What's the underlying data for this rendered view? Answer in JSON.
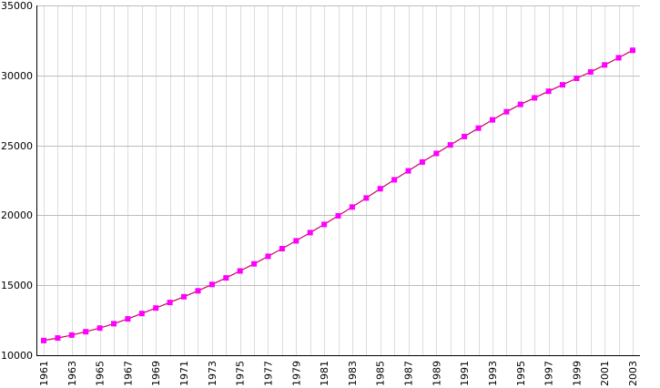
{
  "chart_data": {
    "type": "line",
    "title": "",
    "xlabel": "",
    "ylabel": "",
    "x": [
      1961,
      1962,
      1963,
      1964,
      1965,
      1966,
      1967,
      1968,
      1969,
      1970,
      1971,
      1972,
      1973,
      1974,
      1975,
      1976,
      1977,
      1978,
      1979,
      1980,
      1981,
      1982,
      1983,
      1984,
      1985,
      1986,
      1987,
      1988,
      1989,
      1990,
      1991,
      1992,
      1993,
      1994,
      1995,
      1996,
      1997,
      1998,
      1999,
      2000,
      2001,
      2002,
      2003
    ],
    "xlim": [
      1961,
      2003
    ],
    "x_tick_labels": [
      "1961",
      "1963",
      "1965",
      "1967",
      "1969",
      "1971",
      "1973",
      "1975",
      "1977",
      "1979",
      "1981",
      "1983",
      "1985",
      "1987",
      "1989",
      "1991",
      "1993",
      "1995",
      "1997",
      "1999",
      "2001",
      "2003"
    ],
    "ylim": [
      10000,
      35000
    ],
    "y_ticks": [
      10000,
      15000,
      20000,
      25000,
      30000,
      35000
    ],
    "y_tick_labels": [
      "10000",
      "15000",
      "20000",
      "25000",
      "30000",
      "35000"
    ],
    "grid": true,
    "legend": "none",
    "series": [
      {
        "color": "#ff00ff",
        "line_color": "#cc0066",
        "marker": "square",
        "values": [
          11050,
          11230,
          11440,
          11680,
          11940,
          12250,
          12600,
          12980,
          13370,
          13770,
          14180,
          14600,
          15060,
          15530,
          16020,
          16530,
          17070,
          17620,
          18180,
          18760,
          19350,
          19970,
          20590,
          21240,
          21900,
          22540,
          23180,
          23810,
          24420,
          25030,
          25630,
          26230,
          26820,
          27400,
          27930,
          28400,
          28870,
          29330,
          29790,
          30250,
          30750,
          31260,
          31800
        ]
      }
    ]
  }
}
